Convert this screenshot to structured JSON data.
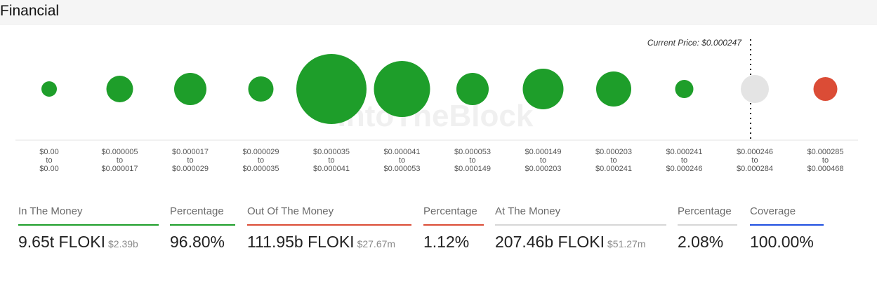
{
  "header": {
    "title": "Financial"
  },
  "chart_data": {
    "type": "scatter",
    "current_price_label": "Current Price: $0.000247",
    "watermark": "IntoTheBlock",
    "bubbles": [
      {
        "from": "$0.00",
        "to": "$0.00",
        "status": "in",
        "color": "#1e9e2a",
        "r": 11
      },
      {
        "from": "$0.000005",
        "to": "$0.000017",
        "status": "in",
        "color": "#1e9e2a",
        "r": 19
      },
      {
        "from": "$0.000017",
        "to": "$0.000029",
        "status": "in",
        "color": "#1e9e2a",
        "r": 23
      },
      {
        "from": "$0.000029",
        "to": "$0.000035",
        "status": "in",
        "color": "#1e9e2a",
        "r": 18
      },
      {
        "from": "$0.000035",
        "to": "$0.000041",
        "status": "in",
        "color": "#1e9e2a",
        "r": 50
      },
      {
        "from": "$0.000041",
        "to": "$0.000053",
        "status": "in",
        "color": "#1e9e2a",
        "r": 40
      },
      {
        "from": "$0.000053",
        "to": "$0.000149",
        "status": "in",
        "color": "#1e9e2a",
        "r": 23
      },
      {
        "from": "$0.000149",
        "to": "$0.000203",
        "status": "in",
        "color": "#1e9e2a",
        "r": 29
      },
      {
        "from": "$0.000203",
        "to": "$0.000241",
        "status": "in",
        "color": "#1e9e2a",
        "r": 25
      },
      {
        "from": "$0.000241",
        "to": "$0.000246",
        "status": "in",
        "color": "#1e9e2a",
        "r": 13
      },
      {
        "from": "$0.000246",
        "to": "$0.000284",
        "status": "at",
        "color": "#e4e4e4",
        "r": 20
      },
      {
        "from": "$0.000285",
        "to": "$0.000468",
        "status": "out",
        "color": "#db4c36",
        "r": 17
      }
    ],
    "range_connector": "to",
    "colors": {
      "in": "#1e9e2a",
      "out": "#db4c36",
      "at": "#e4e4e4",
      "coverage": "#1f4fe0"
    }
  },
  "metrics": [
    {
      "label": "In The Money",
      "value": "9.65t FLOKI",
      "sub": "$2.39b",
      "color": "#1e9e2a"
    },
    {
      "label": "Percentage",
      "value": "96.80%",
      "sub": "",
      "color": "#1e9e2a"
    },
    {
      "label": "Out Of The Money",
      "value": "111.95b FLOKI",
      "sub": "$27.67m",
      "color": "#db4c36"
    },
    {
      "label": "Percentage",
      "value": "1.12%",
      "sub": "",
      "color": "#db4c36"
    },
    {
      "label": "At The Money",
      "value": "207.46b FLOKI",
      "sub": "$51.27m",
      "color": "#d6d6d6"
    },
    {
      "label": "Percentage",
      "value": "2.08%",
      "sub": "",
      "color": "#d6d6d6"
    },
    {
      "label": "Coverage",
      "value": "100.00%",
      "sub": "",
      "color": "#1f4fe0"
    }
  ]
}
